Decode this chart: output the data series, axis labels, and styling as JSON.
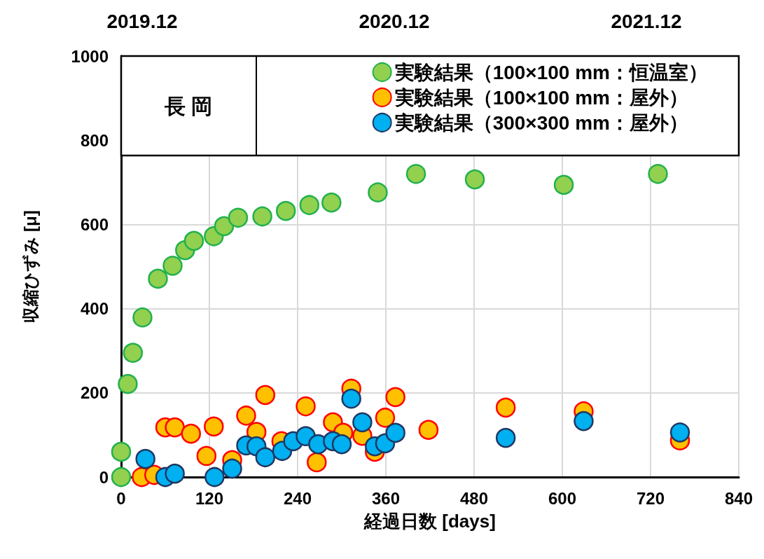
{
  "chart_data": {
    "type": "scatter",
    "xlabel": "経過日数 [days]",
    "ylabel": "収縮ひずみ [μ]",
    "annotations": [
      "長 岡",
      "2019.12",
      "2020.12",
      "2021.12"
    ],
    "xlim": [
      0,
      840
    ],
    "xticks": [
      0,
      120,
      240,
      360,
      480,
      600,
      720,
      840
    ],
    "ylim": [
      0,
      1000
    ],
    "yticks": [
      0,
      200,
      400,
      600,
      800,
      1000
    ],
    "grid": true,
    "legend": "top right",
    "marker": "circle",
    "series": [
      {
        "name": "実験結果（100×100 mm：恒温室）",
        "color": "#92d050",
        "x": [
          0,
          0,
          9,
          16,
          29,
          50,
          70,
          87,
          99,
          126,
          140,
          159,
          192,
          224,
          256,
          286,
          349,
          401,
          481,
          602,
          730
        ],
        "values": [
          0,
          60,
          221,
          295,
          379,
          471,
          502,
          539,
          561,
          572,
          596,
          616,
          619,
          632,
          646,
          652,
          676,
          720,
          707,
          694,
          720
        ]
      },
      {
        "name": "実験結果（100×100 mm：屋外）",
        "color": "#ffc000",
        "x": [
          28,
          45,
          60,
          73,
          95,
          116,
          126,
          151,
          170,
          184,
          196,
          218,
          251,
          266,
          288,
          302,
          313,
          328,
          345,
          359,
          373,
          418,
          523,
          629,
          760
        ],
        "values": [
          0,
          5,
          118,
          118,
          103,
          50,
          120,
          40,
          146,
          107,
          195,
          85,
          168,
          35,
          130,
          105,
          210,
          98,
          60,
          141,
          190,
          112,
          165,
          156,
          87
        ]
      },
      {
        "name": "実験結果（300×300 mm：屋外）",
        "color": "#00b0f0",
        "x": [
          33,
          60,
          73,
          127,
          151,
          170,
          184,
          196,
          219,
          234,
          251,
          268,
          288,
          300,
          313,
          328,
          345,
          359,
          373,
          523,
          629,
          760
        ],
        "values": [
          43,
          0,
          8,
          0,
          20,
          75,
          73,
          47,
          62,
          85,
          97,
          78,
          85,
          78,
          186,
          130,
          73,
          80,
          105,
          93,
          133,
          106
        ]
      }
    ]
  }
}
